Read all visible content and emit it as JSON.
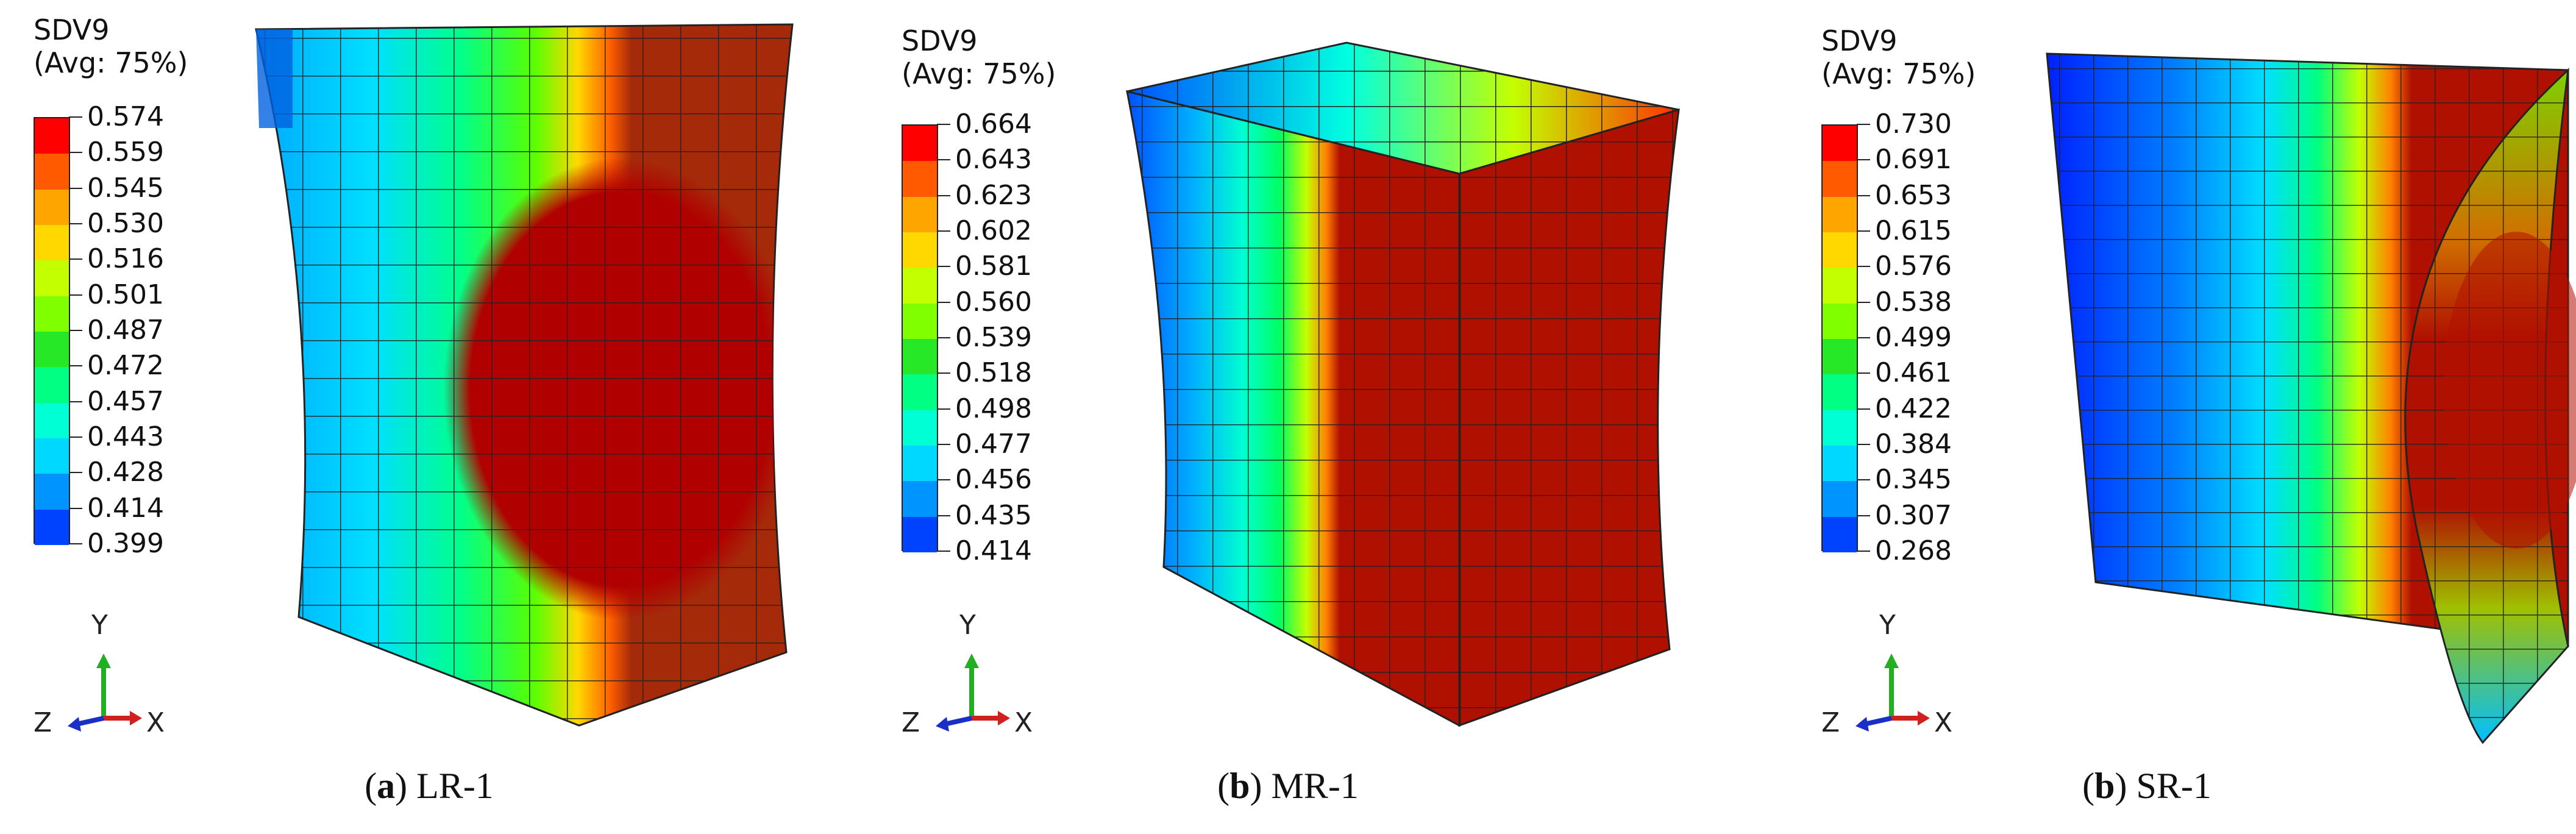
{
  "legend_colors": [
    "#ff0000",
    "#ff5a00",
    "#ffa500",
    "#ffd800",
    "#c4ff00",
    "#7fff00",
    "#26e826",
    "#00ff83",
    "#00ffd5",
    "#00d8ff",
    "#0094ff",
    "#0043ff",
    "#0000ff"
  ],
  "panels": [
    {
      "variable": "SDV9",
      "averaging": "(Avg: 75%)",
      "legend_values": [
        "0.574",
        "0.559",
        "0.545",
        "0.530",
        "0.516",
        "0.501",
        "0.487",
        "0.472",
        "0.457",
        "0.443",
        "0.428",
        "0.414",
        "0.399"
      ],
      "triad": {
        "y": "Y",
        "z": "Z",
        "x": "X"
      },
      "caption_letter": "a",
      "caption_label": "LR-1"
    },
    {
      "variable": "SDV9",
      "averaging": "(Avg: 75%)",
      "legend_values": [
        "0.664",
        "0.643",
        "0.623",
        "0.602",
        "0.581",
        "0.560",
        "0.539",
        "0.518",
        "0.498",
        "0.477",
        "0.456",
        "0.435",
        "0.414"
      ],
      "triad": {
        "y": "Y",
        "z": "Z",
        "x": "X"
      },
      "caption_letter": "b",
      "caption_label": "MR-1"
    },
    {
      "variable": "SDV9",
      "averaging": "(Avg: 75%)",
      "legend_values": [
        "0.730",
        "0.691",
        "0.653",
        "0.615",
        "0.576",
        "0.538",
        "0.499",
        "0.461",
        "0.422",
        "0.384",
        "0.345",
        "0.307",
        "0.268"
      ],
      "triad": {
        "y": "Y",
        "z": "Z",
        "x": "X"
      },
      "caption_letter": "b",
      "caption_label": "SR-1"
    }
  ]
}
